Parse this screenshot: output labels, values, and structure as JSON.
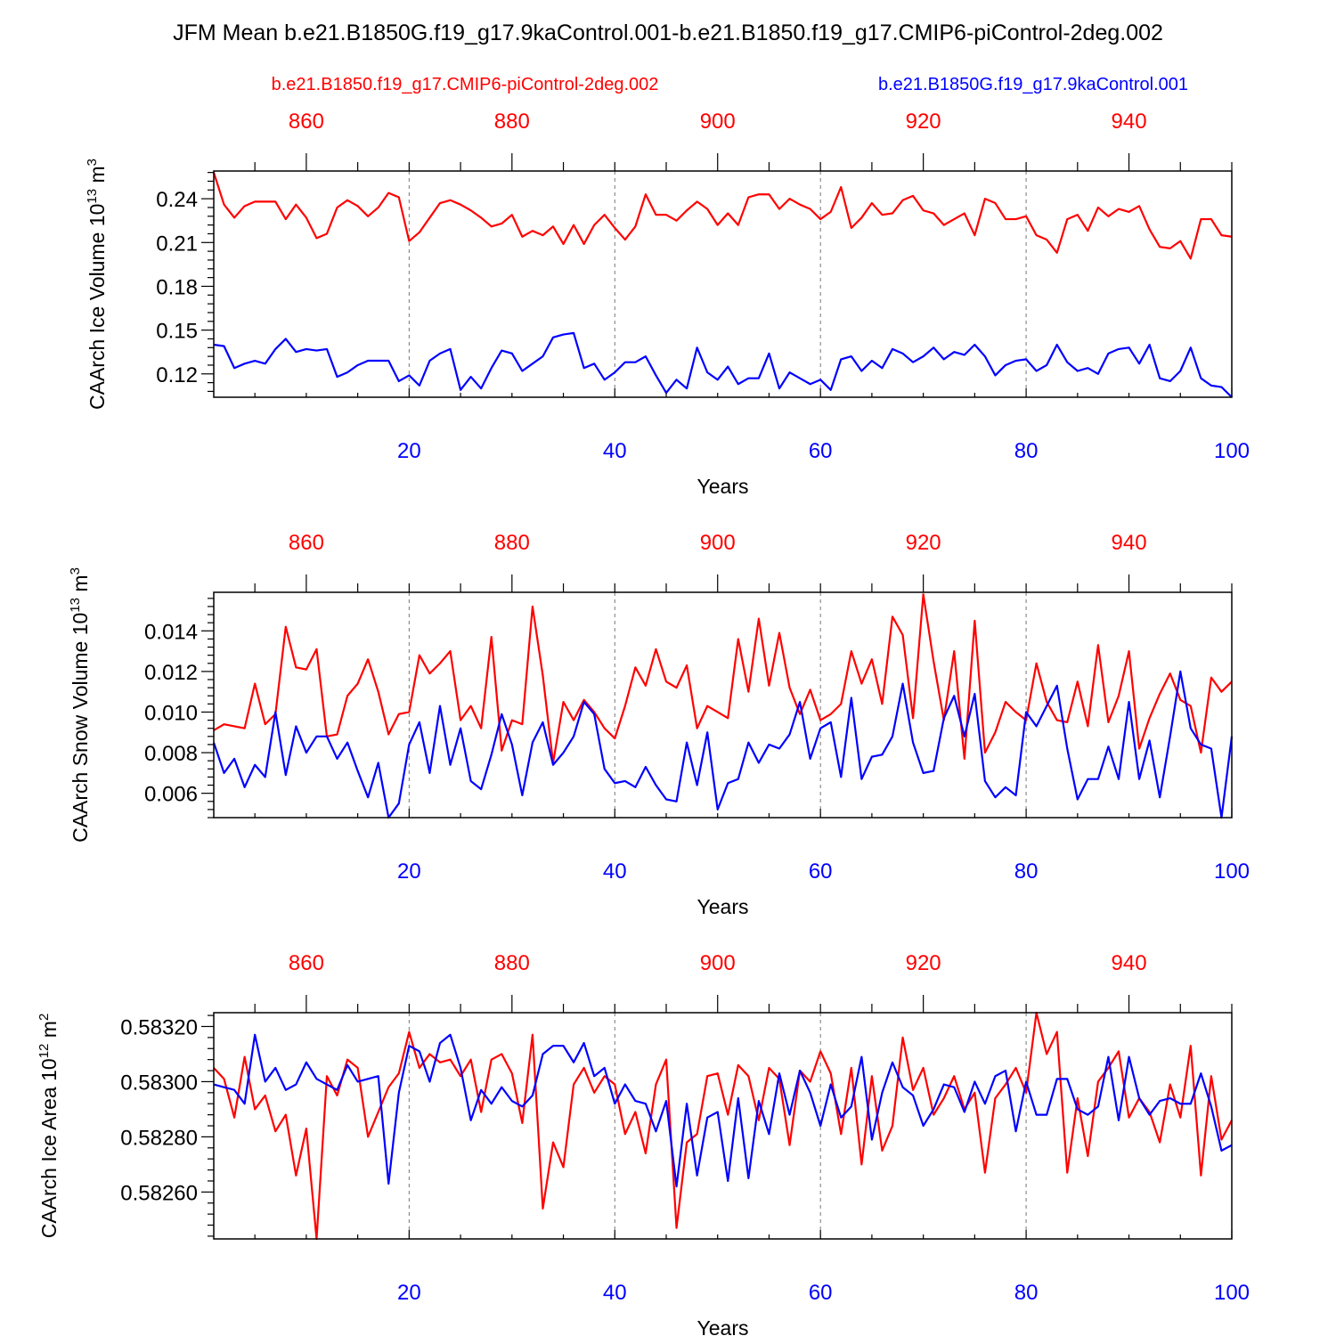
{
  "title": "JFM Mean b.e21.B1850G.f19_g17.9kaControl.001-b.e21.B1850.f19_g17.CMIP6-piControl-2deg.002",
  "legend": {
    "red_label": "b.e21.B1850.f19_g17.CMIP6-piControl-2deg.002",
    "blue_label": "b.e21.B1850G.f19_g17.9kaControl.001"
  },
  "colors": {
    "red": "#ff0000",
    "blue": "#0000ff"
  },
  "chart_data": [
    {
      "type": "line",
      "title": "",
      "ylabel": "CAArch Ice Volume 10",
      "ylabel_exp": "13",
      "ylabel_unit": " m",
      "ylabel_unit_exp": "3",
      "xlabel": "Years",
      "xlim": [
        1,
        100
      ],
      "top_xlim": [
        851,
        950
      ],
      "ylim": [
        0.104,
        0.259
      ],
      "yticks": [
        0.12,
        0.15,
        0.18,
        0.21,
        0.24
      ],
      "ytick_labels": [
        "0.12",
        "0.15",
        "0.18",
        "0.21",
        "0.24"
      ],
      "ytick_minor": 0.006,
      "xticks": [
        20,
        40,
        60,
        80,
        100
      ],
      "top_xticks": [
        860,
        880,
        900,
        920,
        940
      ],
      "series": [
        {
          "name": "b.e21.B1850.f19_g17.CMIP6-piControl-2deg.002",
          "color": "#ff0000",
          "values": [
            0.258,
            0.236,
            0.227,
            0.235,
            0.238,
            0.238,
            0.238,
            0.226,
            0.236,
            0.227,
            0.213,
            0.216,
            0.234,
            0.239,
            0.235,
            0.228,
            0.234,
            0.244,
            0.241,
            0.211,
            0.217,
            0.227,
            0.237,
            0.239,
            0.236,
            0.232,
            0.227,
            0.221,
            0.223,
            0.229,
            0.214,
            0.218,
            0.215,
            0.221,
            0.209,
            0.222,
            0.209,
            0.222,
            0.229,
            0.22,
            0.212,
            0.221,
            0.243,
            0.229,
            0.229,
            0.225,
            0.232,
            0.238,
            0.233,
            0.222,
            0.23,
            0.222,
            0.241,
            0.243,
            0.243,
            0.233,
            0.24,
            0.236,
            0.233,
            0.226,
            0.231,
            0.248,
            0.22,
            0.227,
            0.237,
            0.229,
            0.23,
            0.239,
            0.242,
            0.232,
            0.23,
            0.222,
            0.226,
            0.23,
            0.215,
            0.24,
            0.237,
            0.226,
            0.226,
            0.228,
            0.215,
            0.212,
            0.203,
            0.226,
            0.229,
            0.218,
            0.234,
            0.228,
            0.233,
            0.231,
            0.235,
            0.219,
            0.207,
            0.206,
            0.211,
            0.199,
            0.226,
            0.226,
            0.215,
            0.214
          ]
        },
        {
          "name": "b.e21.B1850G.f19_g17.9kaControl.001",
          "color": "#0000ff",
          "values": [
            0.14,
            0.139,
            0.124,
            0.127,
            0.129,
            0.127,
            0.137,
            0.144,
            0.135,
            0.137,
            0.136,
            0.137,
            0.118,
            0.121,
            0.126,
            0.129,
            0.129,
            0.129,
            0.115,
            0.119,
            0.112,
            0.129,
            0.134,
            0.137,
            0.109,
            0.118,
            0.11,
            0.124,
            0.136,
            0.134,
            0.122,
            0.127,
            0.132,
            0.145,
            0.147,
            0.148,
            0.124,
            0.127,
            0.116,
            0.121,
            0.128,
            0.128,
            0.132,
            0.119,
            0.107,
            0.116,
            0.11,
            0.138,
            0.121,
            0.116,
            0.125,
            0.113,
            0.117,
            0.117,
            0.134,
            0.11,
            0.121,
            0.117,
            0.113,
            0.116,
            0.109,
            0.13,
            0.132,
            0.122,
            0.129,
            0.124,
            0.137,
            0.134,
            0.128,
            0.132,
            0.138,
            0.13,
            0.135,
            0.133,
            0.14,
            0.132,
            0.119,
            0.126,
            0.129,
            0.13,
            0.122,
            0.126,
            0.14,
            0.128,
            0.122,
            0.124,
            0.12,
            0.134,
            0.137,
            0.138,
            0.127,
            0.14,
            0.117,
            0.115,
            0.122,
            0.138,
            0.117,
            0.112,
            0.111,
            0.104
          ]
        }
      ]
    },
    {
      "type": "line",
      "title": "",
      "ylabel": "CAArch Snow Volume 10",
      "ylabel_exp": "13",
      "ylabel_unit": " m",
      "ylabel_unit_exp": "3",
      "xlabel": "Years",
      "xlim": [
        1,
        100
      ],
      "top_xlim": [
        851,
        950
      ],
      "ylim": [
        0.0048,
        0.0159
      ],
      "yticks": [
        0.006,
        0.008,
        0.01,
        0.012,
        0.014
      ],
      "ytick_labels": [
        "0.006",
        "0.008",
        "0.010",
        "0.012",
        "0.014"
      ],
      "ytick_minor": 0.0004,
      "xticks": [
        20,
        40,
        60,
        80,
        100
      ],
      "top_xticks": [
        860,
        880,
        900,
        920,
        940
      ],
      "series": [
        {
          "name": "b.e21.B1850.f19_g17.CMIP6-piControl-2deg.002",
          "color": "#ff0000",
          "values": [
            0.0091,
            0.0094,
            0.0093,
            0.0092,
            0.0114,
            0.0094,
            0.0099,
            0.0142,
            0.0122,
            0.0121,
            0.0131,
            0.0088,
            0.0089,
            0.0108,
            0.0114,
            0.0126,
            0.011,
            0.0089,
            0.0099,
            0.01,
            0.0128,
            0.0119,
            0.0124,
            0.013,
            0.0096,
            0.0103,
            0.0092,
            0.0137,
            0.0081,
            0.0096,
            0.0094,
            0.0152,
            0.0118,
            0.0075,
            0.0105,
            0.0096,
            0.0106,
            0.01,
            0.0092,
            0.0087,
            0.0103,
            0.0122,
            0.0113,
            0.0131,
            0.0115,
            0.0112,
            0.0123,
            0.0092,
            0.0103,
            0.01,
            0.0097,
            0.0136,
            0.011,
            0.0146,
            0.0113,
            0.0139,
            0.0112,
            0.0099,
            0.0111,
            0.0096,
            0.0099,
            0.0104,
            0.013,
            0.0114,
            0.0126,
            0.0104,
            0.0147,
            0.0138,
            0.0097,
            0.0158,
            0.0125,
            0.0096,
            0.013,
            0.0077,
            0.0145,
            0.008,
            0.009,
            0.0105,
            0.01,
            0.0096,
            0.0124,
            0.0105,
            0.0096,
            0.0095,
            0.0115,
            0.0093,
            0.0133,
            0.0095,
            0.0108,
            0.013,
            0.0082,
            0.0097,
            0.0109,
            0.0119,
            0.0106,
            0.0103,
            0.008,
            0.0117,
            0.011,
            0.0115
          ]
        },
        {
          "name": "b.e21.B1850G.f19_g17.9kaControl.001",
          "color": "#0000ff",
          "values": [
            0.0085,
            0.007,
            0.0077,
            0.0063,
            0.0074,
            0.0068,
            0.01,
            0.0069,
            0.0093,
            0.008,
            0.0088,
            0.0088,
            0.0077,
            0.0085,
            0.0071,
            0.0058,
            0.0075,
            0.0048,
            0.0055,
            0.0084,
            0.0095,
            0.007,
            0.0103,
            0.0074,
            0.0092,
            0.0066,
            0.0062,
            0.0079,
            0.0099,
            0.0084,
            0.0059,
            0.0085,
            0.0095,
            0.0074,
            0.008,
            0.0088,
            0.0105,
            0.0099,
            0.0072,
            0.0065,
            0.0066,
            0.0063,
            0.0073,
            0.0064,
            0.0057,
            0.0056,
            0.0085,
            0.0064,
            0.009,
            0.0052,
            0.0065,
            0.0067,
            0.0085,
            0.0075,
            0.0084,
            0.0082,
            0.0089,
            0.0105,
            0.0077,
            0.0092,
            0.0095,
            0.0068,
            0.0107,
            0.0067,
            0.0078,
            0.0079,
            0.0088,
            0.0114,
            0.0085,
            0.007,
            0.0071,
            0.0097,
            0.0108,
            0.0088,
            0.0109,
            0.0066,
            0.0058,
            0.0063,
            0.0059,
            0.01,
            0.0093,
            0.0103,
            0.0113,
            0.0082,
            0.0057,
            0.0067,
            0.0067,
            0.0083,
            0.0067,
            0.0105,
            0.0067,
            0.0086,
            0.0058,
            0.0088,
            0.012,
            0.0092,
            0.0084,
            0.0082,
            0.0048,
            0.0088
          ]
        }
      ]
    },
    {
      "type": "line",
      "title": "",
      "ylabel": "CAArch Ice Area 10",
      "ylabel_exp": "12",
      "ylabel_unit": " m",
      "ylabel_unit_exp": "2",
      "xlabel": "Years",
      "xlim": [
        1,
        100
      ],
      "top_xlim": [
        851,
        950
      ],
      "ylim": [
        0.58243,
        0.58325
      ],
      "yticks": [
        0.5826,
        0.5828,
        0.583,
        0.5832
      ],
      "ytick_labels": [
        "0.58260",
        "0.58280",
        "0.58300",
        "0.58320"
      ],
      "ytick_minor": 4e-05,
      "xticks": [
        20,
        40,
        60,
        80,
        100
      ],
      "top_xticks": [
        860,
        880,
        900,
        920,
        940
      ],
      "series": [
        {
          "name": "b.e21.B1850.f19_g17.CMIP6-piControl-2deg.002",
          "color": "#ff0000",
          "values": [
            0.58305,
            0.58301,
            0.58287,
            0.58309,
            0.5829,
            0.58295,
            0.58282,
            0.58288,
            0.58266,
            0.58283,
            0.58243,
            0.58302,
            0.58295,
            0.58308,
            0.58305,
            0.5828,
            0.58289,
            0.58298,
            0.58303,
            0.58318,
            0.58305,
            0.5831,
            0.58307,
            0.58308,
            0.58302,
            0.58308,
            0.58289,
            0.58308,
            0.5831,
            0.58303,
            0.58285,
            0.58317,
            0.58254,
            0.58278,
            0.58269,
            0.58299,
            0.58305,
            0.58296,
            0.58302,
            0.58299,
            0.58281,
            0.58289,
            0.58274,
            0.58299,
            0.58308,
            0.58247,
            0.58278,
            0.58281,
            0.58302,
            0.58303,
            0.58288,
            0.58306,
            0.58302,
            0.58286,
            0.58305,
            0.58301,
            0.58277,
            0.58304,
            0.583,
            0.58311,
            0.58303,
            0.58281,
            0.58305,
            0.5827,
            0.58302,
            0.58275,
            0.58284,
            0.58316,
            0.58297,
            0.58305,
            0.58288,
            0.58294,
            0.58302,
            0.5829,
            0.58296,
            0.58267,
            0.58294,
            0.58299,
            0.58305,
            0.58296,
            0.58325,
            0.5831,
            0.58318,
            0.58267,
            0.58294,
            0.58273,
            0.583,
            0.58305,
            0.58311,
            0.58287,
            0.58294,
            0.58289,
            0.58278,
            0.58299,
            0.58287,
            0.58313,
            0.58266,
            0.58302,
            0.58279,
            0.58286
          ]
        },
        {
          "name": "b.e21.B1850G.f19_g17.9kaControl.001",
          "color": "#0000ff",
          "values": [
            0.58299,
            0.58298,
            0.58297,
            0.58292,
            0.58317,
            0.583,
            0.58305,
            0.58297,
            0.58299,
            0.58307,
            0.58301,
            0.58299,
            0.58297,
            0.58306,
            0.583,
            0.58301,
            0.58302,
            0.58263,
            0.58296,
            0.58313,
            0.58311,
            0.583,
            0.58314,
            0.58317,
            0.58305,
            0.58286,
            0.58297,
            0.58292,
            0.58298,
            0.58293,
            0.58291,
            0.58295,
            0.5831,
            0.58313,
            0.58313,
            0.58307,
            0.58314,
            0.58302,
            0.58305,
            0.58292,
            0.58299,
            0.58293,
            0.58292,
            0.58282,
            0.58293,
            0.58262,
            0.58292,
            0.58266,
            0.58287,
            0.58289,
            0.58264,
            0.58294,
            0.58265,
            0.58293,
            0.58281,
            0.58303,
            0.58288,
            0.58304,
            0.58296,
            0.58284,
            0.58299,
            0.58287,
            0.58291,
            0.58309,
            0.58279,
            0.58296,
            0.58307,
            0.58298,
            0.58295,
            0.58284,
            0.5829,
            0.58299,
            0.58298,
            0.58289,
            0.583,
            0.58292,
            0.58302,
            0.58304,
            0.58282,
            0.583,
            0.58288,
            0.58288,
            0.58301,
            0.58301,
            0.5829,
            0.58288,
            0.58291,
            0.58309,
            0.58286,
            0.58309,
            0.58294,
            0.58288,
            0.58293,
            0.58294,
            0.58292,
            0.58292,
            0.58303,
            0.58291,
            0.58275,
            0.58277
          ]
        }
      ]
    }
  ]
}
